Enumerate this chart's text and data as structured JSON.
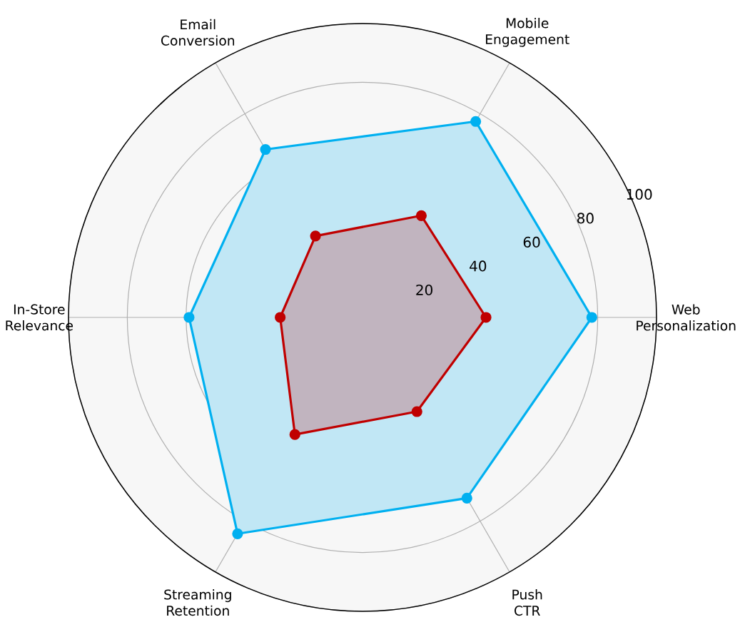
{
  "chart_data": {
    "type": "radar",
    "categories": [
      "Mobile Engagement",
      "Web Personalization",
      "Push CTR",
      "Streaming Retention",
      "In-Store Relevance",
      "Email Conversion"
    ],
    "series": [
      {
        "color": "#00b0f0",
        "values": [
          77,
          78,
          71,
          85,
          59,
          66
        ]
      },
      {
        "color": "#c00000",
        "values": [
          40,
          42,
          37,
          46,
          28,
          32
        ]
      }
    ],
    "ylim": [
      0,
      100
    ],
    "yticks": [
      20,
      40,
      60,
      80,
      100
    ],
    "grid": true,
    "marker": "circle",
    "line_style": "solid"
  }
}
